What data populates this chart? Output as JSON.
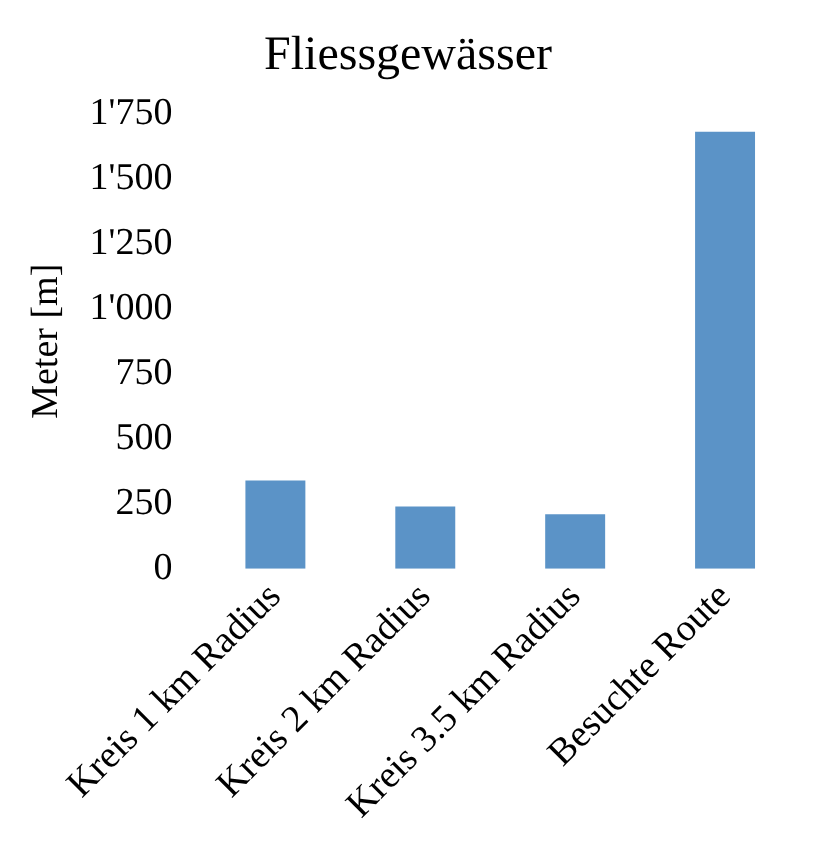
{
  "chart_data": {
    "type": "bar",
    "title": "Fliessgewässer",
    "ylabel": "Meter [m]",
    "categories": [
      "Kreis 1 km Radius",
      "Kreis 2 km Radius",
      "Kreis 3.5 km Radius",
      "Besuchte Route"
    ],
    "values": [
      340,
      240,
      210,
      1680
    ],
    "color": "#5b93c7",
    "ylim": [
      0,
      1750
    ],
    "yticks": [
      0,
      250,
      500,
      750,
      {
        "value": 1000,
        "label": "1'000"
      },
      {
        "value": 1250,
        "label": "1'250"
      },
      {
        "value": 1500,
        "label": "1'500"
      },
      {
        "value": 1750,
        "label": "1'750"
      }
    ],
    "grid": false,
    "legend": false
  }
}
